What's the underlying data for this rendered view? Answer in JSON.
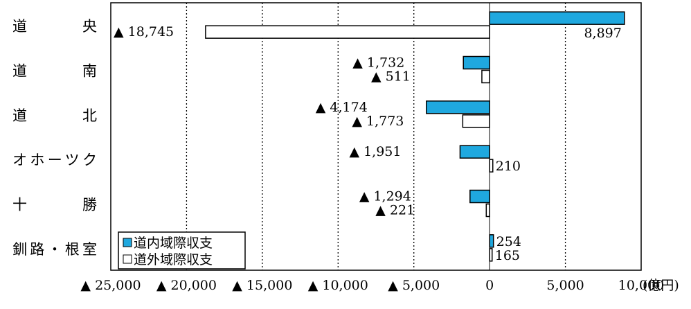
{
  "chart_data": {
    "type": "bar",
    "orientation": "horizontal",
    "categories": [
      "道　　央",
      "道　　南",
      "道　　北",
      "オホーツク",
      "十　　勝",
      "釧路・根室"
    ],
    "series": [
      {
        "name": "道内域際収支",
        "color": "#1fa8df",
        "values": [
          8897,
          -1732,
          -4174,
          -1951,
          -1294,
          254
        ],
        "labels": [
          "8,897",
          "▲ 1,732",
          "▲ 4,174",
          "▲ 1,951",
          "▲ 1,294",
          "254"
        ]
      },
      {
        "name": "道外域際収支",
        "color": "#ffffff",
        "values": [
          -18745,
          -511,
          -1773,
          210,
          -221,
          165
        ],
        "labels": [
          "▲ 18,745",
          "▲ 511",
          "▲ 1,773",
          "210",
          "▲ 221",
          "165"
        ]
      }
    ],
    "xlim": [
      -25000,
      10000
    ],
    "xticks": [
      -25000,
      -20000,
      -15000,
      -10000,
      -5000,
      0,
      5000,
      10000
    ],
    "xtick_labels": [
      "▲ 25,000",
      "▲ 20,000",
      "▲ 15,000",
      "▲ 10,000",
      "▲ 5,000",
      "0",
      "5,000",
      "10,000"
    ],
    "unit": "(億円)",
    "grid": "vertical-dotted",
    "legend_position": "bottom-left",
    "xlabel": "",
    "ylabel": "",
    "title": ""
  }
}
